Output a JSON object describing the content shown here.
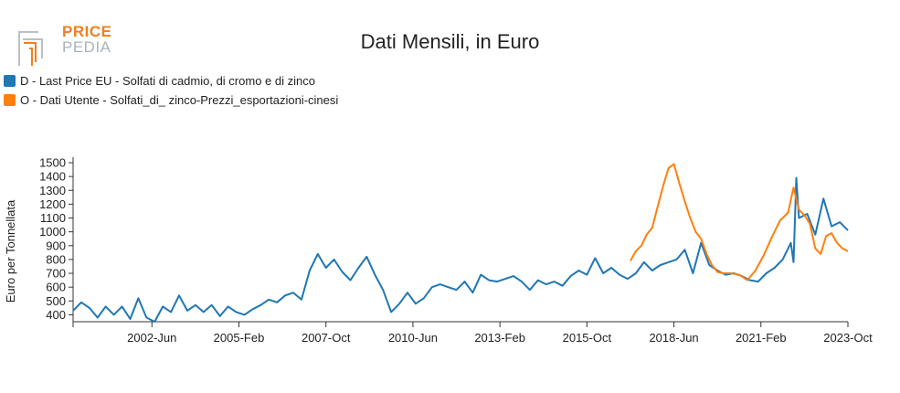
{
  "logo": {
    "top": "PRICE",
    "bottom": "PEDIA"
  },
  "title": "Dati Mensili, in Euro",
  "colors": {
    "series_0": "#1f77b4",
    "series_1": "#ff7f0e",
    "axis": "#333333"
  },
  "chart_data": {
    "type": "line",
    "title": "Dati Mensili, in Euro",
    "ylabel": "Euro per Tonnellata",
    "xlabel": "",
    "ylim": [
      350,
      1500
    ],
    "yticks": [
      400,
      500,
      600,
      700,
      800,
      900,
      1000,
      1100,
      1200,
      1300,
      1400,
      1500
    ],
    "xlim": [
      "2000-01",
      "2023-10"
    ],
    "xticks": [
      {
        "date": "2002-06",
        "label": "2002-Jun"
      },
      {
        "date": "2005-02",
        "label": "2005-Feb"
      },
      {
        "date": "2007-10",
        "label": "2007-Oct"
      },
      {
        "date": "2010-06",
        "label": "2010-Jun"
      },
      {
        "date": "2013-02",
        "label": "2013-Feb"
      },
      {
        "date": "2015-10",
        "label": "2015-Oct"
      },
      {
        "date": "2018-06",
        "label": "2018-Jun"
      },
      {
        "date": "2021-02",
        "label": "2021-Feb"
      },
      {
        "date": "2023-10",
        "label": "2023-Oct"
      }
    ],
    "legend_position": "top-left",
    "grid": false,
    "series": [
      {
        "name": "D - Last Price EU - Solfati di cadmio, di cromo e di zinco",
        "points": [
          [
            "2000-01",
            430
          ],
          [
            "2000-04",
            490
          ],
          [
            "2000-07",
            450
          ],
          [
            "2000-10",
            380
          ],
          [
            "2001-01",
            460
          ],
          [
            "2001-04",
            400
          ],
          [
            "2001-07",
            460
          ],
          [
            "2001-10",
            370
          ],
          [
            "2002-01",
            520
          ],
          [
            "2002-04",
            380
          ],
          [
            "2002-07",
            350
          ],
          [
            "2002-10",
            460
          ],
          [
            "2003-01",
            420
          ],
          [
            "2003-04",
            540
          ],
          [
            "2003-07",
            430
          ],
          [
            "2003-10",
            470
          ],
          [
            "2004-01",
            420
          ],
          [
            "2004-04",
            470
          ],
          [
            "2004-07",
            390
          ],
          [
            "2004-10",
            460
          ],
          [
            "2005-01",
            420
          ],
          [
            "2005-04",
            400
          ],
          [
            "2005-07",
            440
          ],
          [
            "2005-10",
            470
          ],
          [
            "2006-01",
            510
          ],
          [
            "2006-04",
            490
          ],
          [
            "2006-07",
            540
          ],
          [
            "2006-10",
            560
          ],
          [
            "2007-01",
            510
          ],
          [
            "2007-04",
            720
          ],
          [
            "2007-07",
            840
          ],
          [
            "2007-10",
            740
          ],
          [
            "2008-01",
            800
          ],
          [
            "2008-04",
            710
          ],
          [
            "2008-07",
            650
          ],
          [
            "2008-10",
            740
          ],
          [
            "2009-01",
            820
          ],
          [
            "2009-04",
            690
          ],
          [
            "2009-07",
            580
          ],
          [
            "2009-10",
            420
          ],
          [
            "2010-01",
            480
          ],
          [
            "2010-04",
            560
          ],
          [
            "2010-07",
            480
          ],
          [
            "2010-10",
            520
          ],
          [
            "2011-01",
            600
          ],
          [
            "2011-04",
            620
          ],
          [
            "2011-07",
            600
          ],
          [
            "2011-10",
            580
          ],
          [
            "2012-01",
            640
          ],
          [
            "2012-04",
            560
          ],
          [
            "2012-07",
            690
          ],
          [
            "2012-10",
            650
          ],
          [
            "2013-01",
            640
          ],
          [
            "2013-04",
            660
          ],
          [
            "2013-07",
            680
          ],
          [
            "2013-10",
            640
          ],
          [
            "2014-01",
            580
          ],
          [
            "2014-04",
            650
          ],
          [
            "2014-07",
            620
          ],
          [
            "2014-10",
            640
          ],
          [
            "2015-01",
            610
          ],
          [
            "2015-04",
            680
          ],
          [
            "2015-07",
            720
          ],
          [
            "2015-10",
            690
          ],
          [
            "2016-01",
            810
          ],
          [
            "2016-04",
            700
          ],
          [
            "2016-07",
            740
          ],
          [
            "2016-10",
            690
          ],
          [
            "2017-01",
            660
          ],
          [
            "2017-04",
            700
          ],
          [
            "2017-07",
            780
          ],
          [
            "2017-10",
            720
          ],
          [
            "2018-01",
            760
          ],
          [
            "2018-04",
            780
          ],
          [
            "2018-07",
            800
          ],
          [
            "2018-10",
            870
          ],
          [
            "2019-01",
            700
          ],
          [
            "2019-04",
            920
          ],
          [
            "2019-07",
            760
          ],
          [
            "2019-10",
            720
          ],
          [
            "2020-01",
            690
          ],
          [
            "2020-04",
            700
          ],
          [
            "2020-07",
            680
          ],
          [
            "2020-10",
            650
          ],
          [
            "2021-01",
            640
          ],
          [
            "2021-04",
            700
          ],
          [
            "2021-07",
            740
          ],
          [
            "2021-10",
            800
          ],
          [
            "2022-01",
            920
          ],
          [
            "2022-02",
            780
          ],
          [
            "2022-03",
            1390
          ],
          [
            "2022-04",
            1100
          ],
          [
            "2022-07",
            1130
          ],
          [
            "2022-10",
            980
          ],
          [
            "2023-01",
            1240
          ],
          [
            "2023-04",
            1040
          ],
          [
            "2023-07",
            1070
          ],
          [
            "2023-10",
            1010
          ]
        ]
      },
      {
        "name": "O - Dati Utente - Solfati_di_ zinco-Prezzi_esportazioni-cinesi",
        "points": [
          [
            "2017-02",
            790
          ],
          [
            "2017-04",
            860
          ],
          [
            "2017-06",
            900
          ],
          [
            "2017-08",
            980
          ],
          [
            "2017-10",
            1030
          ],
          [
            "2017-12",
            1180
          ],
          [
            "2018-02",
            1330
          ],
          [
            "2018-04",
            1460
          ],
          [
            "2018-06",
            1490
          ],
          [
            "2018-08",
            1350
          ],
          [
            "2018-10",
            1220
          ],
          [
            "2018-12",
            1100
          ],
          [
            "2019-02",
            1000
          ],
          [
            "2019-04",
            950
          ],
          [
            "2019-06",
            840
          ],
          [
            "2019-08",
            760
          ],
          [
            "2019-10",
            710
          ],
          [
            "2019-12",
            700
          ],
          [
            "2020-03",
            700
          ],
          [
            "2020-06",
            690
          ],
          [
            "2020-09",
            650
          ],
          [
            "2020-12",
            720
          ],
          [
            "2021-03",
            830
          ],
          [
            "2021-06",
            960
          ],
          [
            "2021-09",
            1080
          ],
          [
            "2021-12",
            1140
          ],
          [
            "2022-02",
            1320
          ],
          [
            "2022-04",
            1160
          ],
          [
            "2022-06",
            1120
          ],
          [
            "2022-08",
            1060
          ],
          [
            "2022-10",
            880
          ],
          [
            "2022-12",
            840
          ],
          [
            "2023-02",
            970
          ],
          [
            "2023-04",
            990
          ],
          [
            "2023-06",
            920
          ],
          [
            "2023-08",
            880
          ],
          [
            "2023-10",
            860
          ]
        ]
      }
    ]
  }
}
